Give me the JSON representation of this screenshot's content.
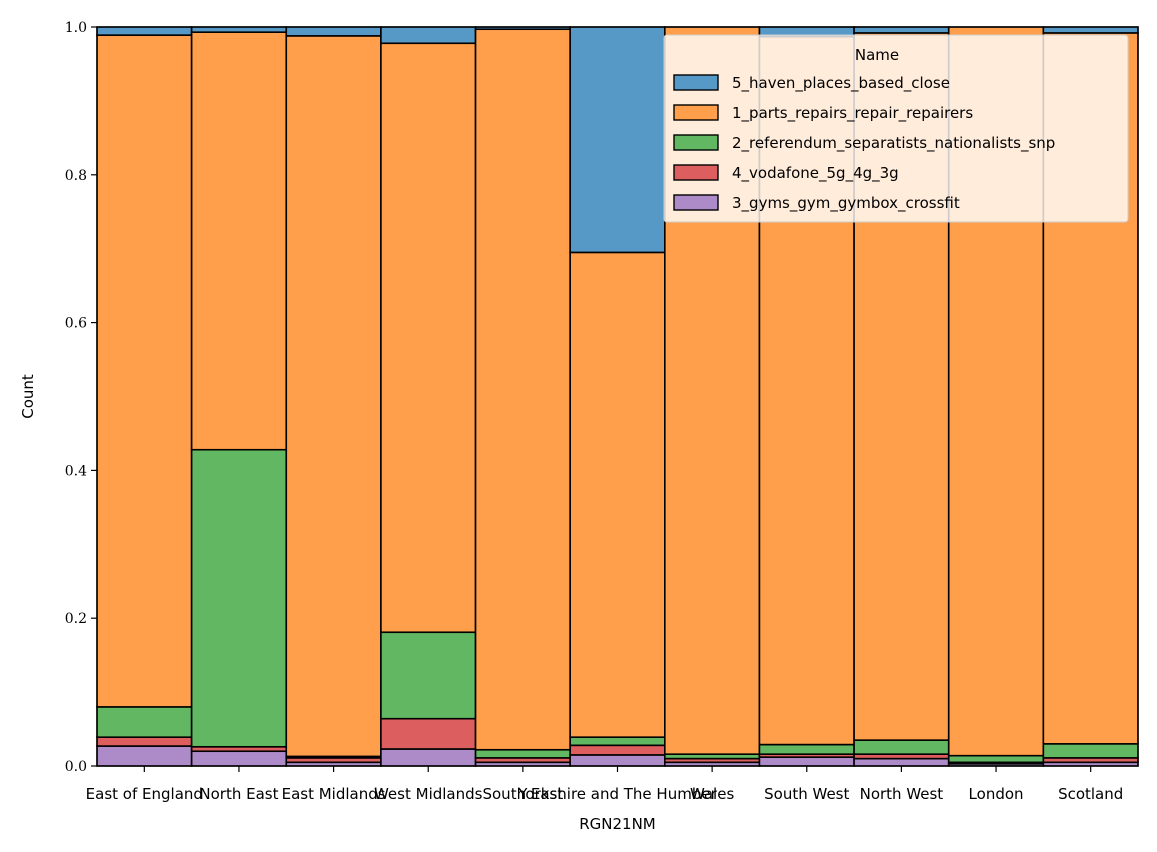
{
  "chart_data": {
    "type": "bar",
    "stacked": true,
    "normalized": true,
    "xlabel": "RGN21NM",
    "ylabel": "Count",
    "ylim": [
      0,
      1.0
    ],
    "yticks": [
      "0.0",
      "0.2",
      "0.4",
      "0.6",
      "0.8",
      "1.0"
    ],
    "categories": [
      "East of England",
      "North East",
      "East Midlands",
      "West Midlands",
      "South East",
      "Yorkshire and The Humber",
      "Wales",
      "South West",
      "North West",
      "London",
      "Scotland"
    ],
    "legend": {
      "title": "Name",
      "position": "top-right",
      "entries": [
        "5_haven_places_based_close",
        "1_parts_repairs_repair_repairers",
        "2_referendum_separatists_nationalists_snp",
        "4_vodafone_5g_4g_3g",
        "3_gyms_gym_gymbox_crossfit"
      ]
    },
    "stack_order_bottom_to_top": [
      "3_gyms_gym_gymbox_crossfit",
      "4_vodafone_5g_4g_3g",
      "2_referendum_separatists_nationalists_snp",
      "1_parts_repairs_repair_repairers",
      "5_haven_places_based_close"
    ],
    "colors": {
      "5_haven_places_based_close": "#5799c6",
      "1_parts_repairs_repair_repairers": "#ff9f4b",
      "2_referendum_separatists_nationalists_snp": "#62b862",
      "4_vodafone_5g_4g_3g": "#dc5e5e",
      "3_gyms_gym_gymbox_crossfit": "#ad8bc9"
    },
    "series": [
      {
        "name": "3_gyms_gym_gymbox_crossfit",
        "values": [
          0.027,
          0.02,
          0.005,
          0.023,
          0.005,
          0.015,
          0.005,
          0.012,
          0.01,
          0.003,
          0.005
        ]
      },
      {
        "name": "4_vodafone_5g_4g_3g",
        "values": [
          0.012,
          0.006,
          0.006,
          0.041,
          0.006,
          0.013,
          0.005,
          0.004,
          0.006,
          0.002,
          0.006
        ]
      },
      {
        "name": "2_referendum_separatists_nationalists_snp",
        "values": [
          0.041,
          0.402,
          0.002,
          0.117,
          0.011,
          0.011,
          0.006,
          0.013,
          0.019,
          0.009,
          0.019
        ]
      },
      {
        "name": "1_parts_repairs_repair_repairers",
        "values": [
          0.909,
          0.565,
          0.975,
          0.797,
          0.975,
          0.656,
          0.984,
          0.958,
          0.957,
          0.986,
          0.962
        ]
      },
      {
        "name": "5_haven_places_based_close",
        "values": [
          0.011,
          0.007,
          0.012,
          0.022,
          0.003,
          0.305,
          0.0,
          0.013,
          0.008,
          0.0,
          0.008
        ]
      }
    ]
  }
}
